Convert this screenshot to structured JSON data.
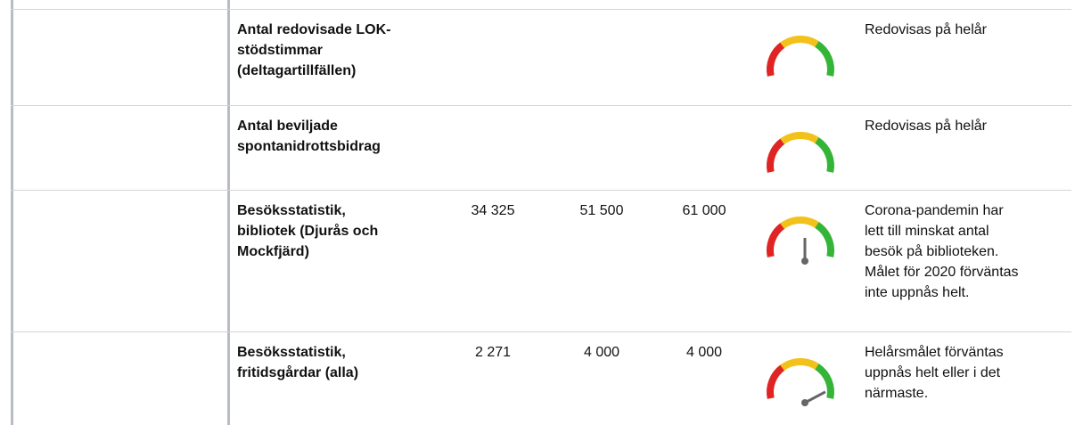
{
  "table": {
    "rows": [
      {
        "label": [
          "Antal redovisade LOK-",
          "stödstimmar",
          "(deltagartillfällen)"
        ],
        "comment": [
          "Redovisas på helår"
        ]
      },
      {
        "label": [
          "Antal beviljade",
          "spontanidrottsbidrag"
        ],
        "comment": [
          "Redovisas på helår"
        ]
      },
      {
        "label": [
          "Besöksstatistik,",
          "bibliotek (Djurås och",
          "Mockfjärd)"
        ],
        "values": [
          "34 325",
          "51 500",
          "61 000"
        ],
        "comment": [
          "Corona-pandemin har",
          "lett till minskat antal",
          "besök på biblioteken.",
          "Målet för 2020 förväntas",
          "inte uppnås helt."
        ]
      },
      {
        "label": [
          "Besöksstatistik,",
          "fritidsgårdar (alla)"
        ],
        "values": [
          "2 271",
          "4 000",
          "4 000"
        ],
        "comment": [
          "Helårsmålet förväntas",
          "uppnås helt eller i det",
          "närmaste."
        ]
      }
    ]
  }
}
